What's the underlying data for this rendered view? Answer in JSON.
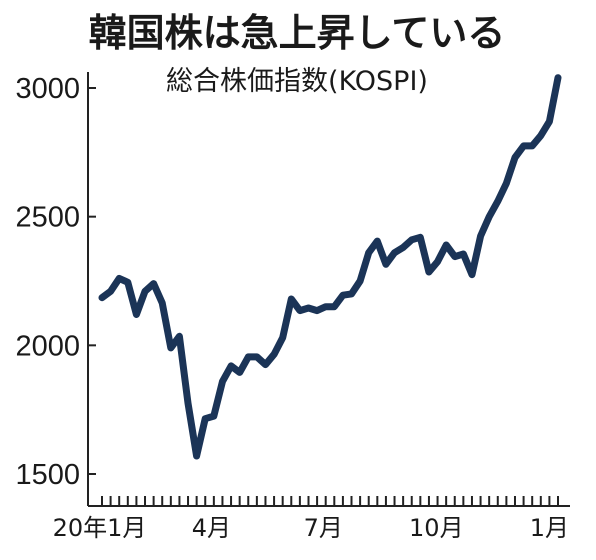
{
  "chart_data": {
    "type": "line",
    "title": "韓国株は急上昇している",
    "subtitle": "総合株価指数(KOSPI)",
    "xlabel": "",
    "ylabel": "",
    "ylim": [
      1500,
      3100
    ],
    "yticks": [
      1500,
      2000,
      2500,
      3000
    ],
    "ytick_labels": [
      "1500",
      "2000",
      "2500",
      "3000"
    ],
    "xtick_labels": [
      {
        "label": "20年1月",
        "date": "2020-01"
      },
      {
        "label": "4月",
        "date": "2020-04"
      },
      {
        "label": "7月",
        "date": "2020-07"
      },
      {
        "label": "10月",
        "date": "2020-10"
      },
      {
        "label": "1月",
        "date": "2021-01"
      }
    ],
    "grid": false,
    "series": [
      {
        "color": "#1b3457",
        "x": [
          "2020-01-03",
          "2020-01-10",
          "2020-01-17",
          "2020-01-24",
          "2020-01-31",
          "2020-02-07",
          "2020-02-14",
          "2020-02-21",
          "2020-02-28",
          "2020-03-06",
          "2020-03-13",
          "2020-03-20",
          "2020-03-27",
          "2020-04-03",
          "2020-04-10",
          "2020-04-17",
          "2020-04-24",
          "2020-05-01",
          "2020-05-08",
          "2020-05-15",
          "2020-05-22",
          "2020-05-29",
          "2020-06-05",
          "2020-06-12",
          "2020-06-19",
          "2020-06-26",
          "2020-07-03",
          "2020-07-10",
          "2020-07-17",
          "2020-07-24",
          "2020-07-31",
          "2020-08-07",
          "2020-08-14",
          "2020-08-21",
          "2020-08-28",
          "2020-09-04",
          "2020-09-11",
          "2020-09-18",
          "2020-09-25",
          "2020-10-02",
          "2020-10-09",
          "2020-10-16",
          "2020-10-23",
          "2020-10-30",
          "2020-11-06",
          "2020-11-13",
          "2020-11-20",
          "2020-11-27",
          "2020-12-04",
          "2020-12-11",
          "2020-12-18",
          "2020-12-25",
          "2021-01-01",
          "2021-01-08"
        ],
        "values": [
          2185,
          2210,
          2260,
          2245,
          2120,
          2210,
          2240,
          2165,
          1990,
          2035,
          1775,
          1570,
          1715,
          1725,
          1860,
          1920,
          1895,
          1955,
          1955,
          1925,
          1965,
          2030,
          2180,
          2135,
          2145,
          2135,
          2150,
          2150,
          2195,
          2200,
          2250,
          2360,
          2405,
          2315,
          2360,
          2380,
          2410,
          2420,
          2285,
          2325,
          2390,
          2345,
          2355,
          2275,
          2425,
          2500,
          2560,
          2630,
          2730,
          2775,
          2775,
          2815,
          2870,
          3040
        ]
      }
    ]
  }
}
